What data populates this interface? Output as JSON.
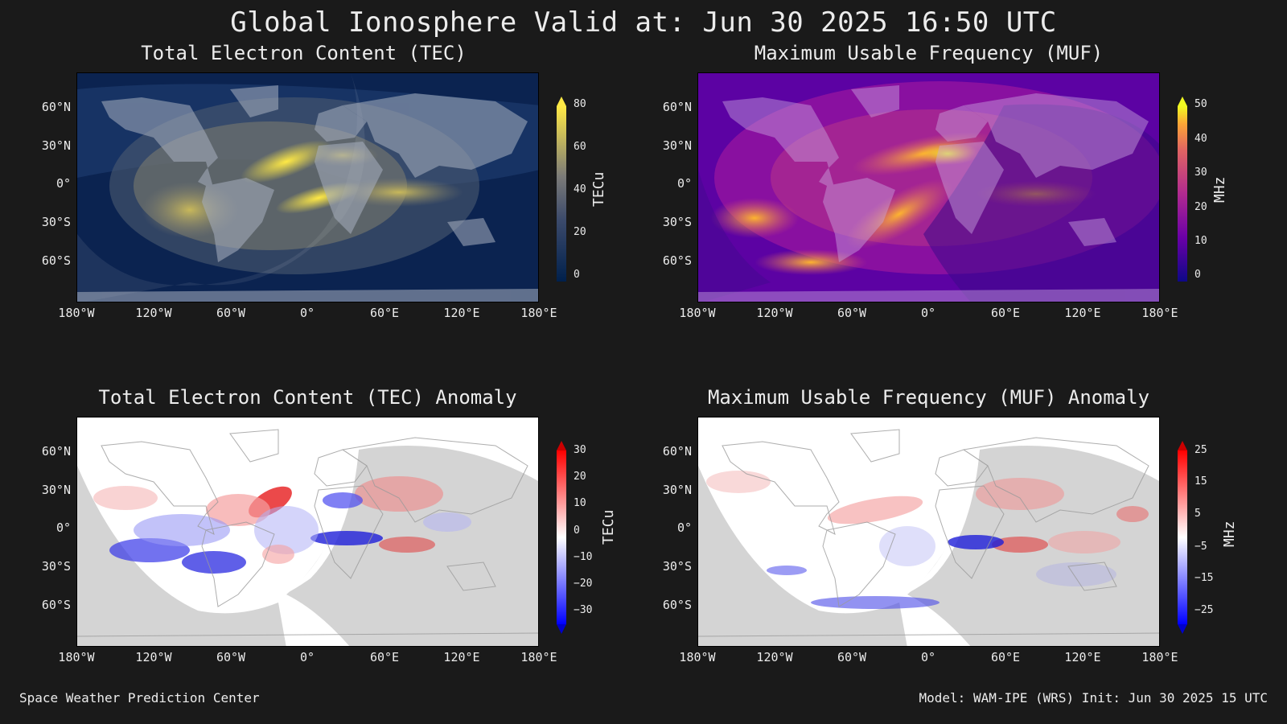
{
  "title": "Global Ionosphere Valid at: Jun 30 2025 16:50 UTC",
  "panels": [
    {
      "id": "tec",
      "title": "Total Electron Content (TEC)",
      "cb_label": "TECu",
      "cb_ticks": [
        "80",
        "60",
        "40",
        "20",
        "0"
      ]
    },
    {
      "id": "muf",
      "title": "Maximum Usable Frequency (MUF)",
      "cb_label": "MHz",
      "cb_ticks": [
        "50",
        "40",
        "30",
        "20",
        "10",
        "0"
      ]
    },
    {
      "id": "tec_anom",
      "title": "Total Electron Content (TEC) Anomaly",
      "cb_label": "TECu",
      "cb_ticks": [
        "30",
        "20",
        "10",
        "0",
        "−10",
        "−20",
        "−30"
      ]
    },
    {
      "id": "muf_anom",
      "title": "Maximum Usable Frequency (MUF) Anomaly",
      "cb_label": "MHz",
      "cb_ticks": [
        "25",
        "15",
        "5",
        "−5",
        "−15",
        "−25"
      ]
    }
  ],
  "lat_ticks": [
    "60°N",
    "30°N",
    "0°",
    "30°S",
    "60°S"
  ],
  "lon_ticks": [
    "180°W",
    "120°W",
    "60°W",
    "0°",
    "60°E",
    "120°E",
    "180°E"
  ],
  "footer": {
    "left": "Space Weather Prediction Center",
    "right": "Model: WAM-IPE (WRS) Init: Jun 30 2025 15 UTC"
  },
  "colors": {
    "background": "#1a1a1a",
    "tec_low": "#00204c",
    "tec_high": "#ffe945",
    "muf_low": "#0d0887",
    "muf_high": "#f0f921",
    "anom_neg": "#0000ff",
    "anom_pos": "#ff0000"
  }
}
